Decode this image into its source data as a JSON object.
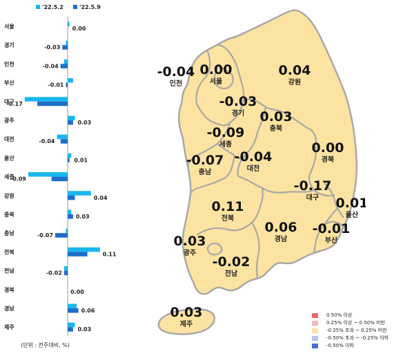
{
  "chart_data": [
    {
      "type": "bar",
      "orientation": "horizontal",
      "categories": [
        "서울",
        "경기",
        "인천",
        "부산",
        "대구",
        "광주",
        "대전",
        "울산",
        "세종",
        "강원",
        "충북",
        "충남",
        "전북",
        "전남",
        "경북",
        "경남",
        "제주"
      ],
      "series": [
        {
          "name": "'22.5.2",
          "color": "#1ab6ef",
          "values": [
            0.01,
            -0.01,
            -0.02,
            0.03,
            -0.24,
            0.04,
            -0.06,
            0.02,
            -0.22,
            0.13,
            0.02,
            -0.01,
            0.18,
            -0.02,
            0.0,
            0.05,
            0.04
          ]
        },
        {
          "name": "'22.5.9",
          "color": "#1e6ec9",
          "values": [
            0.0,
            -0.03,
            -0.04,
            -0.01,
            -0.17,
            0.03,
            -0.04,
            0.01,
            -0.09,
            0.04,
            0.03,
            -0.07,
            0.11,
            -0.02,
            0.0,
            0.06,
            0.03
          ]
        }
      ],
      "value_labels": [
        "0.00",
        "-0.03",
        "-0.04",
        "-0.01",
        "-0.17",
        "0.03",
        "-0.04",
        "0.01",
        "-0.09",
        "0.04",
        "0.03",
        "-0.07",
        "0.11",
        "-0.02",
        "0.00",
        "0.06",
        "0.03"
      ],
      "xlim": [
        -0.27,
        0.2
      ],
      "unit_note": "(단위 : 전주대비, %)"
    },
    {
      "type": "choropleth-map",
      "regions": [
        {
          "name": "인천",
          "value": "-0.04",
          "band": "mid"
        },
        {
          "name": "서울",
          "value": "0.00",
          "band": "mid"
        },
        {
          "name": "강원",
          "value": "0.04",
          "band": "mid"
        },
        {
          "name": "경기",
          "value": "-0.03",
          "band": "mid"
        },
        {
          "name": "충북",
          "value": "0.03",
          "band": "mid"
        },
        {
          "name": "세종",
          "value": "-0.09",
          "band": "mid"
        },
        {
          "name": "충남",
          "value": "-0.07",
          "band": "mid"
        },
        {
          "name": "대전",
          "value": "-0.04",
          "band": "mid"
        },
        {
          "name": "경북",
          "value": "0.00",
          "band": "mid"
        },
        {
          "name": "대구",
          "value": "-0.17",
          "band": "mid"
        },
        {
          "name": "울산",
          "value": "0.01",
          "band": "mid"
        },
        {
          "name": "전북",
          "value": "0.11",
          "band": "mid"
        },
        {
          "name": "광주",
          "value": "0.03",
          "band": "mid"
        },
        {
          "name": "경남",
          "value": "0.06",
          "band": "mid"
        },
        {
          "name": "부산",
          "value": "-0.01",
          "band": "mid"
        },
        {
          "name": "전남",
          "value": "-0.02",
          "band": "mid"
        },
        {
          "name": "제주",
          "value": "0.03",
          "band": "mid"
        }
      ],
      "legend": [
        {
          "label": "0.50% 이상",
          "color": "#e86a6a"
        },
        {
          "label": "0.25% 이상 ~ 0.50% 미만",
          "color": "#f6b8b8"
        },
        {
          "label": "-0.25% 초과 ~ 0.25% 미만",
          "color": "#fde3a1"
        },
        {
          "label": "-0.50% 초과 ~ -0.25% 이하",
          "color": "#b3c3ee"
        },
        {
          "label": "-0.50% 이하",
          "color": "#4a6fd4"
        }
      ]
    }
  ]
}
